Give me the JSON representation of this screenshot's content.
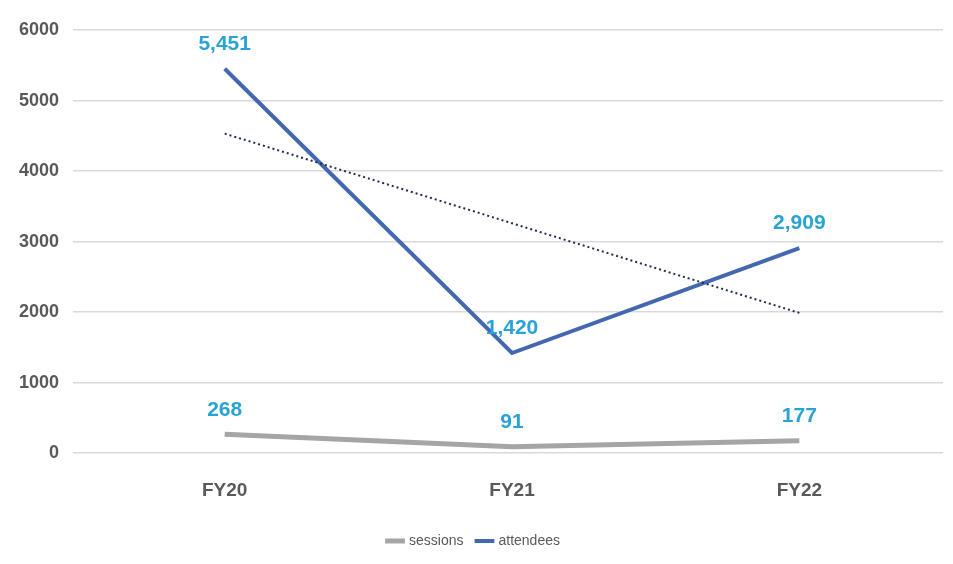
{
  "chart_data": {
    "type": "line",
    "categories": [
      "FY20",
      "FY21",
      "FY22"
    ],
    "series": [
      {
        "name": "sessions",
        "color": "#a5a5a5",
        "values": [
          268,
          91,
          177
        ],
        "data_labels": true
      },
      {
        "name": "attendees",
        "color": "#4368b0",
        "values": [
          5451,
          1420,
          2909
        ],
        "value_labels": [
          "5,451",
          "1,420",
          "2,909"
        ],
        "data_labels": true
      },
      {
        "color": "#1f2d4e",
        "values": [
          4531,
          3260,
          1989
        ],
        "line_style": "dotted"
      }
    ],
    "ylim": [
      0,
      6000
    ],
    "yticks": [
      0,
      1000,
      2000,
      3000,
      4000,
      5000,
      6000
    ],
    "grid": true,
    "legend": "bottom"
  }
}
